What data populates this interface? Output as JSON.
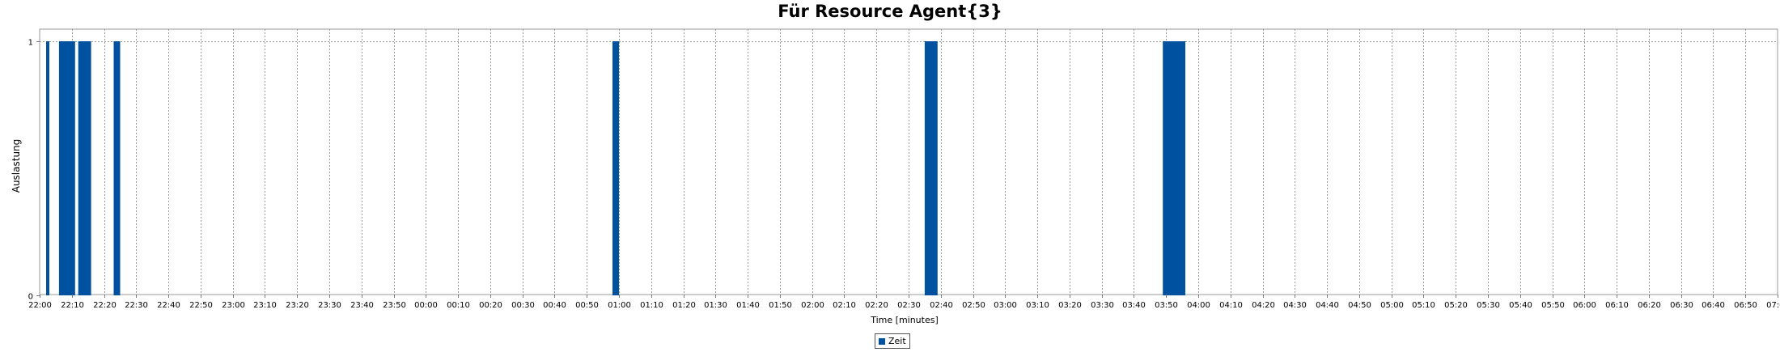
{
  "chart_data": {
    "type": "bar",
    "title": "Für Resource Agent{3}",
    "xlabel": "Time [minutes]",
    "ylabel": "Auslastung",
    "x_range": [
      "22:00",
      "07:00"
    ],
    "ylim": [
      0,
      1
    ],
    "y_ticks": [
      0,
      1
    ],
    "x_tick_labels": [
      "22:00",
      "22:10",
      "22:20",
      "22:30",
      "22:40",
      "22:50",
      "23:00",
      "23:10",
      "23:20",
      "23:30",
      "23:40",
      "23:50",
      "00:00",
      "00:10",
      "00:20",
      "00:30",
      "00:40",
      "00:50",
      "01:00",
      "01:10",
      "01:20",
      "01:30",
      "01:40",
      "01:50",
      "02:00",
      "02:10",
      "02:20",
      "02:30",
      "02:40",
      "02:50",
      "03:00",
      "03:10",
      "03:20",
      "03:30",
      "03:40",
      "03:50",
      "04:00",
      "04:10",
      "04:20",
      "04:30",
      "04:40",
      "04:50",
      "05:00",
      "05:10",
      "05:20",
      "05:30",
      "05:40",
      "05:50",
      "06:00",
      "06:10",
      "06:20",
      "06:30",
      "06:40",
      "06:50",
      "07:00"
    ],
    "grid": true,
    "legend_position": "bottom-center",
    "series": [
      {
        "name": "Zeit",
        "color": "#0051a0",
        "bars": [
          {
            "start": "22:02",
            "end": "22:03",
            "value": 1
          },
          {
            "start": "22:06",
            "end": "22:11",
            "value": 1
          },
          {
            "start": "22:12",
            "end": "22:16",
            "value": 1
          },
          {
            "start": "22:23",
            "end": "22:25",
            "value": 1
          },
          {
            "start": "00:58",
            "end": "01:00",
            "value": 1
          },
          {
            "start": "02:35",
            "end": "02:39",
            "value": 1
          },
          {
            "start": "03:49",
            "end": "03:56",
            "value": 1
          }
        ]
      }
    ]
  }
}
